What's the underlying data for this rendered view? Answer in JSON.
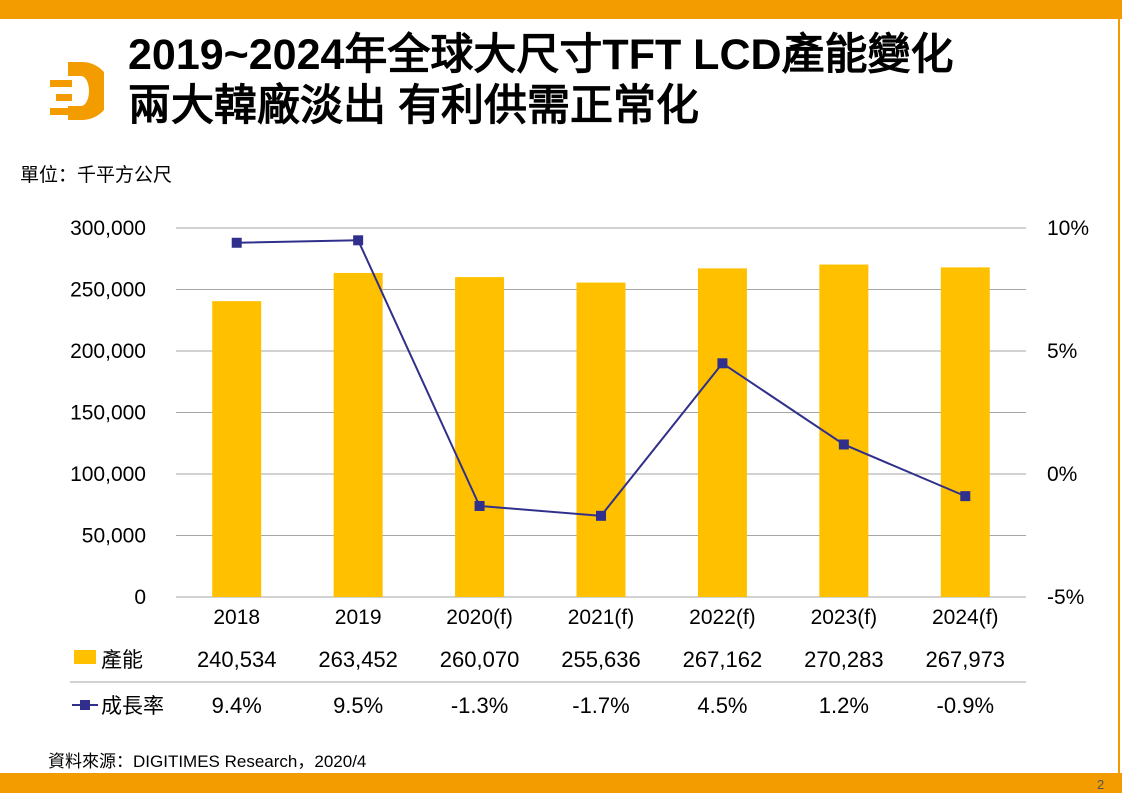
{
  "slide": {
    "title_line1": "2019~2024年全球大尺寸TFT LCD產能變化",
    "title_line2": "兩大韓廠淡出  有利供需正常化",
    "unit": "單位：千平方公尺",
    "source": "資料來源：DIGITIMES Research，2020/4",
    "page_number": "2"
  },
  "colors": {
    "accent": "#F29C00",
    "bar": "#FFC000",
    "line": "#30308C",
    "grid": "#A6A6A6"
  },
  "chart_data": {
    "type": "bar",
    "categories": [
      "2018",
      "2019",
      "2020(f)",
      "2021(f)",
      "2022(f)",
      "2023(f)",
      "2024(f)"
    ],
    "series": [
      {
        "name": "產能",
        "type": "bar",
        "axis": "left",
        "values": [
          240534,
          263452,
          260070,
          255636,
          267162,
          270283,
          267973
        ],
        "labels": [
          "240,534",
          "263,452",
          "260,070",
          "255,636",
          "267,162",
          "270,283",
          "267,973"
        ]
      },
      {
        "name": "成長率",
        "type": "line",
        "axis": "right",
        "values": [
          9.4,
          9.5,
          -1.3,
          -1.7,
          4.5,
          1.2,
          -0.9
        ],
        "labels": [
          "9.4%",
          "9.5%",
          "-1.3%",
          "-1.7%",
          "4.5%",
          "1.2%",
          "-0.9%"
        ]
      }
    ],
    "y_left": {
      "min": 0,
      "max": 300000,
      "ticks": [
        0,
        50000,
        100000,
        150000,
        200000,
        250000,
        300000
      ],
      "tick_labels": [
        "0",
        "50,000",
        "100,000",
        "150,000",
        "200,000",
        "250,000",
        "300,000"
      ]
    },
    "y_right": {
      "min": -5,
      "max": 10,
      "ticks": [
        -5,
        0,
        5,
        10
      ],
      "tick_labels": [
        "-5%",
        "0%",
        "5%",
        "10%"
      ]
    },
    "grid": true,
    "legend": "data-table"
  }
}
